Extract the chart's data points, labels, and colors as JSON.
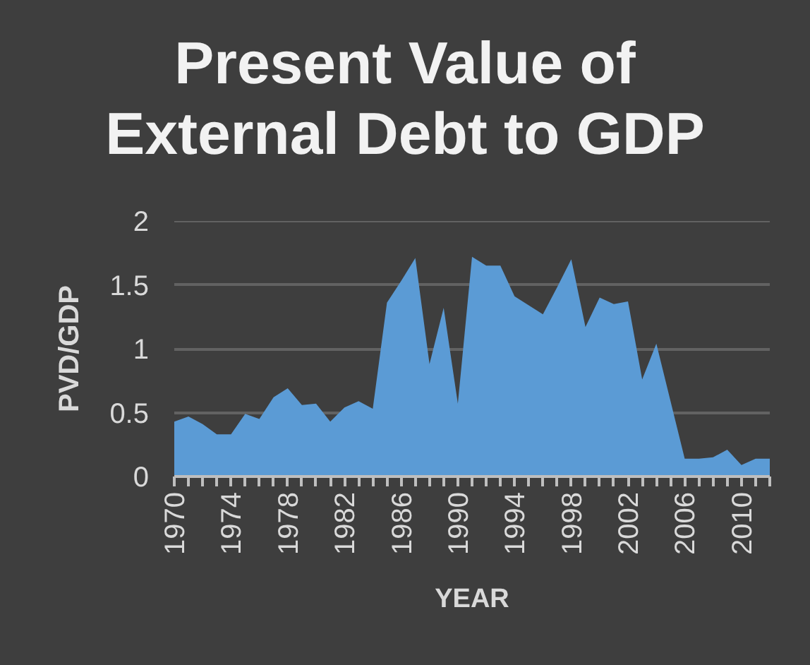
{
  "chart_data": {
    "type": "area",
    "title": "Present Value of\nExternal Debt to GDP",
    "xlabel": "YEAR",
    "ylabel": "PVD/GDP",
    "categories": [
      "1970",
      null,
      null,
      null,
      "1974",
      null,
      null,
      null,
      "1978",
      null,
      null,
      null,
      "1982",
      null,
      null,
      null,
      "1986",
      null,
      null,
      null,
      "1990",
      null,
      null,
      null,
      "1994",
      null,
      null,
      null,
      "1998",
      null,
      null,
      null,
      "2002",
      null,
      null,
      null,
      "2006",
      null,
      null,
      null,
      "2010",
      null,
      null
    ],
    "values": [
      0.43,
      0.47,
      0.41,
      0.33,
      0.33,
      0.49,
      0.45,
      0.62,
      0.69,
      0.56,
      0.57,
      0.43,
      0.54,
      0.59,
      0.53,
      1.36,
      1.53,
      1.71,
      0.88,
      1.32,
      0.57,
      1.72,
      1.65,
      1.65,
      1.41,
      1.34,
      1.27,
      1.48,
      1.7,
      1.17,
      1.4,
      1.35,
      1.37,
      0.76,
      1.04,
      0.59,
      0.14,
      0.14,
      0.15,
      0.21,
      0.09,
      0.14,
      0.14
    ],
    "color": "#5b9bd5",
    "ylim": [
      0,
      2
    ],
    "yticks": [
      0,
      0.5,
      1,
      1.5,
      2
    ],
    "grid": "y"
  }
}
